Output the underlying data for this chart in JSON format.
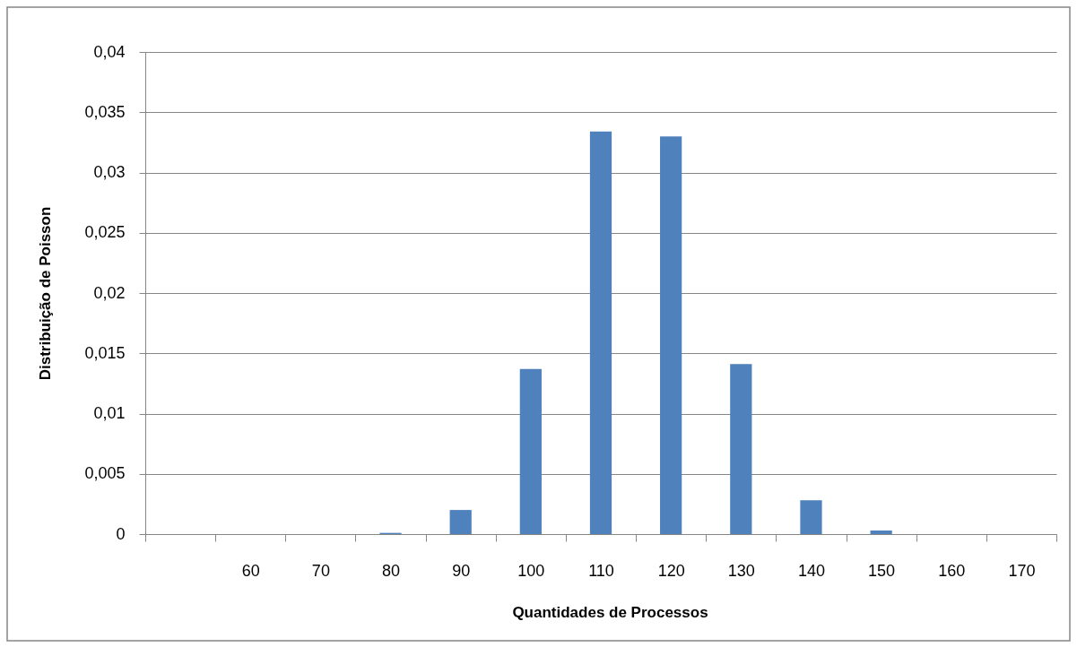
{
  "chart_data": {
    "type": "bar",
    "xlabel": "Quantidades de Processos",
    "ylabel": "Distribuição de Poisson",
    "categories": [
      null,
      "60",
      "70",
      "80",
      "90",
      "100",
      "110",
      "120",
      "130",
      "140",
      "150",
      "160",
      "170"
    ],
    "values": [
      0,
      0,
      0,
      0.0001,
      0.002,
      0.0137,
      0.0334,
      0.033,
      0.0141,
      0.0028,
      0.0003,
      0,
      0
    ],
    "color": "#4f81bd",
    "ylim": [
      0,
      0.04
    ],
    "yticks": [
      0,
      {
        "value": 0.005,
        "label": "0,005"
      },
      {
        "value": 0.01,
        "label": "0,01"
      },
      {
        "value": 0.015,
        "label": "0,015"
      },
      {
        "value": 0.02,
        "label": "0,02"
      },
      {
        "value": 0.025,
        "label": "0,025"
      },
      {
        "value": 0.03,
        "label": "0,03"
      },
      {
        "value": 0.035,
        "label": "0,035"
      },
      {
        "value": 0.04,
        "label": "0,04"
      }
    ],
    "grid": "y"
  }
}
